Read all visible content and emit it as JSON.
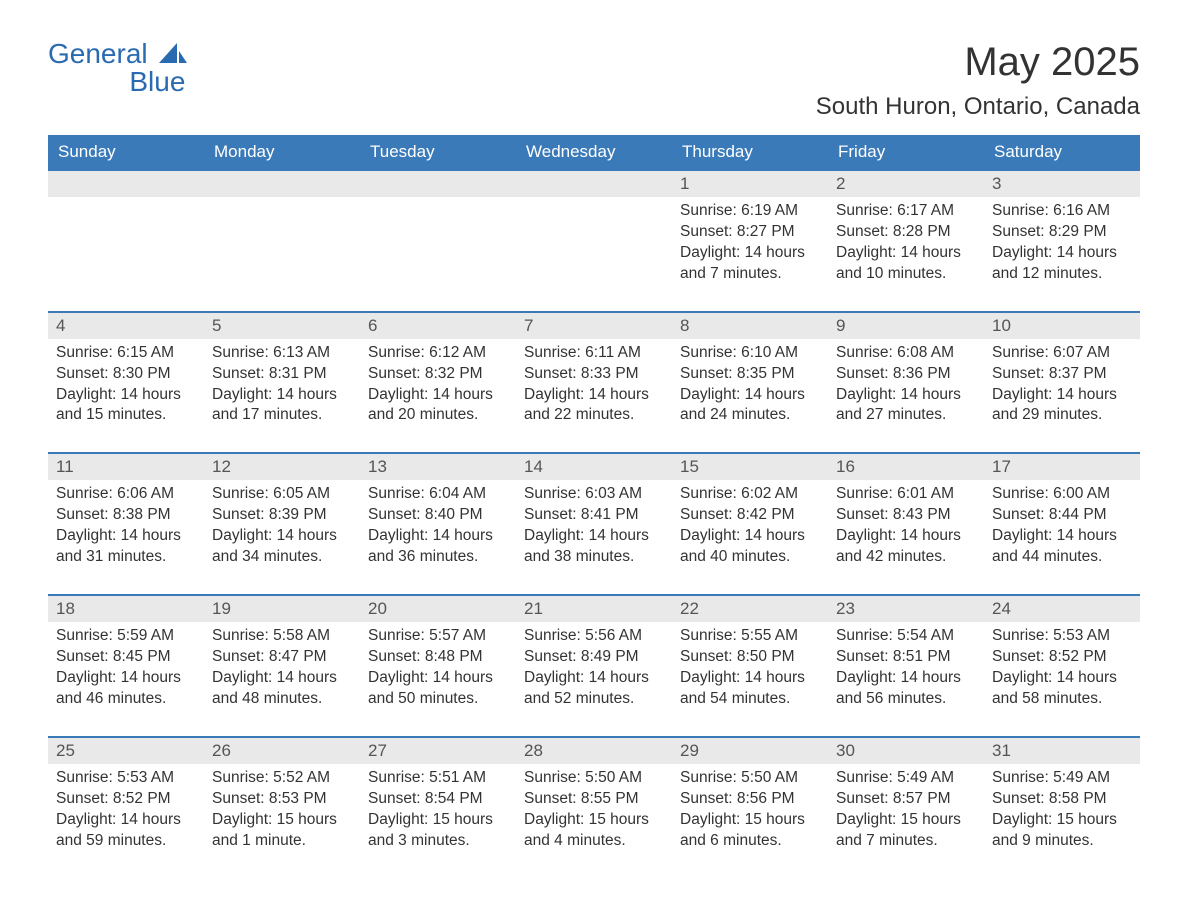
{
  "logo": {
    "word1": "General",
    "word2": "Blue",
    "brand_color": "#2a6ab0"
  },
  "title": "May 2025",
  "subtitle": "South Huron, Ontario, Canada",
  "colors": {
    "header_bg": "#3b7ab8",
    "header_text": "#ffffff",
    "daynum_bg": "#e9e9e9",
    "daynum_text": "#555555",
    "body_text": "#333333",
    "row_border": "#3b7ab8",
    "page_bg": "#ffffff"
  },
  "fonts": {
    "title_size": 40,
    "subtitle_size": 24,
    "header_size": 17,
    "body_size": 15.5
  },
  "day_headers": [
    "Sunday",
    "Monday",
    "Tuesday",
    "Wednesday",
    "Thursday",
    "Friday",
    "Saturday"
  ],
  "weeks": [
    [
      null,
      null,
      null,
      null,
      {
        "n": "1",
        "sunrise": "6:19 AM",
        "sunset": "8:27 PM",
        "daylight": "14 hours and 7 minutes."
      },
      {
        "n": "2",
        "sunrise": "6:17 AM",
        "sunset": "8:28 PM",
        "daylight": "14 hours and 10 minutes."
      },
      {
        "n": "3",
        "sunrise": "6:16 AM",
        "sunset": "8:29 PM",
        "daylight": "14 hours and 12 minutes."
      }
    ],
    [
      {
        "n": "4",
        "sunrise": "6:15 AM",
        "sunset": "8:30 PM",
        "daylight": "14 hours and 15 minutes."
      },
      {
        "n": "5",
        "sunrise": "6:13 AM",
        "sunset": "8:31 PM",
        "daylight": "14 hours and 17 minutes."
      },
      {
        "n": "6",
        "sunrise": "6:12 AM",
        "sunset": "8:32 PM",
        "daylight": "14 hours and 20 minutes."
      },
      {
        "n": "7",
        "sunrise": "6:11 AM",
        "sunset": "8:33 PM",
        "daylight": "14 hours and 22 minutes."
      },
      {
        "n": "8",
        "sunrise": "6:10 AM",
        "sunset": "8:35 PM",
        "daylight": "14 hours and 24 minutes."
      },
      {
        "n": "9",
        "sunrise": "6:08 AM",
        "sunset": "8:36 PM",
        "daylight": "14 hours and 27 minutes."
      },
      {
        "n": "10",
        "sunrise": "6:07 AM",
        "sunset": "8:37 PM",
        "daylight": "14 hours and 29 minutes."
      }
    ],
    [
      {
        "n": "11",
        "sunrise": "6:06 AM",
        "sunset": "8:38 PM",
        "daylight": "14 hours and 31 minutes."
      },
      {
        "n": "12",
        "sunrise": "6:05 AM",
        "sunset": "8:39 PM",
        "daylight": "14 hours and 34 minutes."
      },
      {
        "n": "13",
        "sunrise": "6:04 AM",
        "sunset": "8:40 PM",
        "daylight": "14 hours and 36 minutes."
      },
      {
        "n": "14",
        "sunrise": "6:03 AM",
        "sunset": "8:41 PM",
        "daylight": "14 hours and 38 minutes."
      },
      {
        "n": "15",
        "sunrise": "6:02 AM",
        "sunset": "8:42 PM",
        "daylight": "14 hours and 40 minutes."
      },
      {
        "n": "16",
        "sunrise": "6:01 AM",
        "sunset": "8:43 PM",
        "daylight": "14 hours and 42 minutes."
      },
      {
        "n": "17",
        "sunrise": "6:00 AM",
        "sunset": "8:44 PM",
        "daylight": "14 hours and 44 minutes."
      }
    ],
    [
      {
        "n": "18",
        "sunrise": "5:59 AM",
        "sunset": "8:45 PM",
        "daylight": "14 hours and 46 minutes."
      },
      {
        "n": "19",
        "sunrise": "5:58 AM",
        "sunset": "8:47 PM",
        "daylight": "14 hours and 48 minutes."
      },
      {
        "n": "20",
        "sunrise": "5:57 AM",
        "sunset": "8:48 PM",
        "daylight": "14 hours and 50 minutes."
      },
      {
        "n": "21",
        "sunrise": "5:56 AM",
        "sunset": "8:49 PM",
        "daylight": "14 hours and 52 minutes."
      },
      {
        "n": "22",
        "sunrise": "5:55 AM",
        "sunset": "8:50 PM",
        "daylight": "14 hours and 54 minutes."
      },
      {
        "n": "23",
        "sunrise": "5:54 AM",
        "sunset": "8:51 PM",
        "daylight": "14 hours and 56 minutes."
      },
      {
        "n": "24",
        "sunrise": "5:53 AM",
        "sunset": "8:52 PM",
        "daylight": "14 hours and 58 minutes."
      }
    ],
    [
      {
        "n": "25",
        "sunrise": "5:53 AM",
        "sunset": "8:52 PM",
        "daylight": "14 hours and 59 minutes."
      },
      {
        "n": "26",
        "sunrise": "5:52 AM",
        "sunset": "8:53 PM",
        "daylight": "15 hours and 1 minute."
      },
      {
        "n": "27",
        "sunrise": "5:51 AM",
        "sunset": "8:54 PM",
        "daylight": "15 hours and 3 minutes."
      },
      {
        "n": "28",
        "sunrise": "5:50 AM",
        "sunset": "8:55 PM",
        "daylight": "15 hours and 4 minutes."
      },
      {
        "n": "29",
        "sunrise": "5:50 AM",
        "sunset": "8:56 PM",
        "daylight": "15 hours and 6 minutes."
      },
      {
        "n": "30",
        "sunrise": "5:49 AM",
        "sunset": "8:57 PM",
        "daylight": "15 hours and 7 minutes."
      },
      {
        "n": "31",
        "sunrise": "5:49 AM",
        "sunset": "8:58 PM",
        "daylight": "15 hours and 9 minutes."
      }
    ]
  ],
  "labels": {
    "sunrise": "Sunrise:",
    "sunset": "Sunset:",
    "daylight": "Daylight:"
  }
}
